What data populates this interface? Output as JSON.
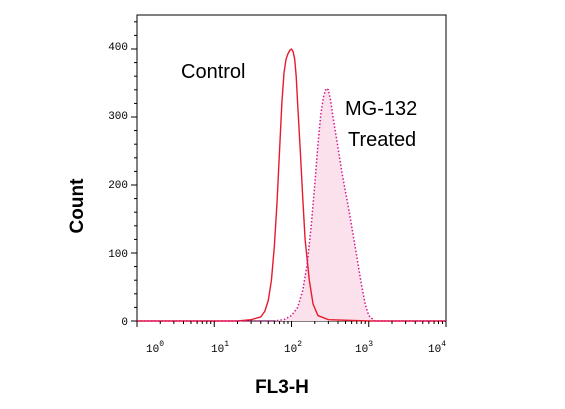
{
  "chart_data": {
    "type": "area",
    "title": "",
    "xlabel": "FL3-H",
    "ylabel": "Count",
    "x_scale": "log",
    "xlim": [
      1,
      10000
    ],
    "ylim": [
      0,
      450
    ],
    "xticks": [
      {
        "value": 1,
        "base": "10",
        "exp": "0"
      },
      {
        "value": 10,
        "base": "10",
        "exp": "1"
      },
      {
        "value": 100,
        "base": "10",
        "exp": "2"
      },
      {
        "value": 1000,
        "base": "10",
        "exp": "3"
      },
      {
        "value": 10000,
        "base": "10",
        "exp": "4"
      }
    ],
    "yticks": [
      "0",
      "100",
      "200",
      "300",
      "400"
    ],
    "grid": false,
    "series": [
      {
        "name": "Control",
        "color": "#e8192c",
        "style": "solid",
        "fill": "none",
        "x": [
          1,
          20,
          30,
          40,
          45,
          50,
          55,
          60,
          65,
          70,
          75,
          80,
          85,
          90,
          95,
          100,
          105,
          110,
          115,
          120,
          130,
          140,
          150,
          170,
          190,
          220,
          300,
          1000,
          10000
        ],
        "y": [
          0,
          0,
          2,
          6,
          14,
          30,
          60,
          110,
          175,
          250,
          320,
          365,
          385,
          393,
          398,
          400,
          396,
          385,
          360,
          320,
          250,
          180,
          120,
          60,
          25,
          8,
          2,
          0,
          0
        ]
      },
      {
        "name": "MG-132 Treated",
        "color": "#d4178f",
        "style": "dotted",
        "fill": "#fbe1ec",
        "x": [
          1,
          60,
          80,
          100,
          120,
          140,
          160,
          180,
          200,
          220,
          240,
          260,
          280,
          300,
          320,
          350,
          400,
          450,
          500,
          550,
          600,
          700,
          800,
          900,
          1000,
          1200,
          10000
        ],
        "y": [
          0,
          0,
          2,
          8,
          20,
          45,
          85,
          140,
          200,
          260,
          305,
          330,
          342,
          340,
          325,
          295,
          255,
          218,
          190,
          165,
          140,
          95,
          55,
          25,
          8,
          0,
          0
        ]
      }
    ],
    "annotations": [
      {
        "text": "Control"
      },
      {
        "text": "MG-132"
      },
      {
        "text": "Treated"
      }
    ]
  }
}
